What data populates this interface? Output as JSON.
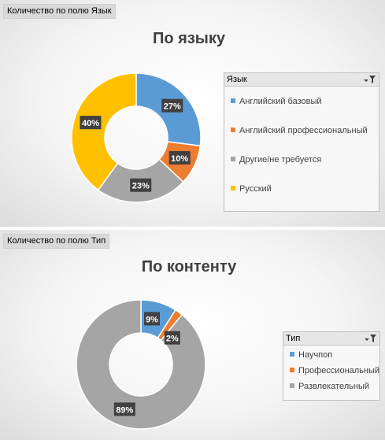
{
  "colors": {
    "blue": "#5b9bd5",
    "orange": "#ed7d31",
    "gray": "#a5a5a5",
    "yellow": "#ffc000"
  },
  "chart_data": [
    {
      "type": "pie",
      "field_button": "Количество по полю Язык",
      "title": "По языку",
      "legend_title": "Язык",
      "categories": [
        "Английский базовый",
        "Английский профессиональный",
        "Другие/не требуется",
        "Русский"
      ],
      "values": [
        27,
        10,
        23,
        40
      ],
      "data_labels": [
        "27%",
        "10%",
        "23%",
        "40%"
      ],
      "colors": [
        "#5b9bd5",
        "#ed7d31",
        "#a5a5a5",
        "#ffc000"
      ],
      "legend": "right"
    },
    {
      "type": "pie",
      "field_button": "Количество по полю Тип",
      "title": "По контенту",
      "legend_title": "Тип",
      "categories": [
        "Научпоп",
        "Профессиональный",
        "Развлекательный"
      ],
      "values": [
        9,
        2,
        89
      ],
      "data_labels": [
        "9%",
        "2%",
        "89%"
      ],
      "colors": [
        "#5b9bd5",
        "#ed7d31",
        "#a5a5a5"
      ],
      "legend": "right"
    }
  ]
}
